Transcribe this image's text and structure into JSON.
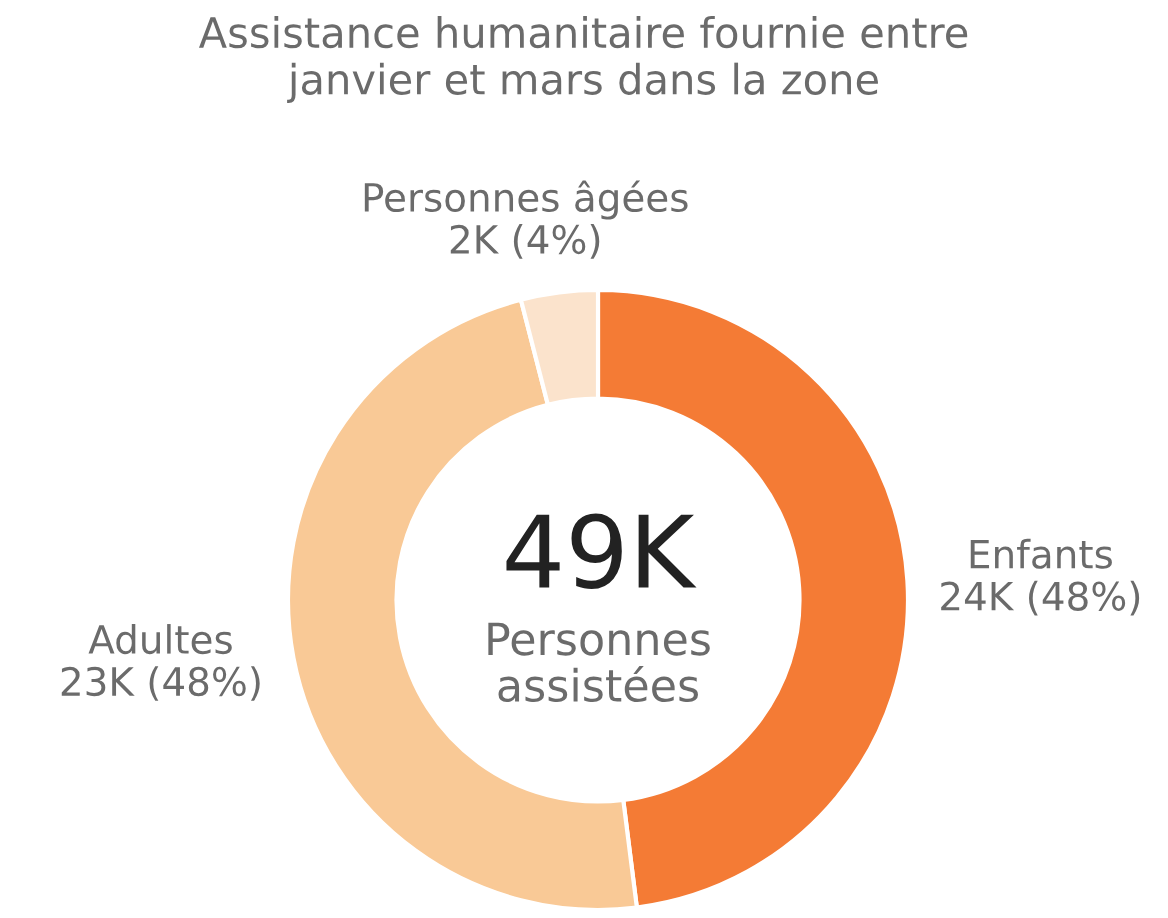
{
  "chart_data": {
    "type": "donut",
    "title": "Assistance humanitaire fournie entre\njanvier et mars dans la zone",
    "categories": [
      "Enfants",
      "Adultes",
      "Personnes âgées"
    ],
    "values": [
      48,
      48,
      4
    ],
    "value_labels": [
      "24K (48%)",
      "23K (48%)",
      "2K (4%)"
    ],
    "colors": [
      "#f47b35",
      "#f9c996",
      "#fbe3cc"
    ],
    "annotations": [
      "49K",
      "Personnes\nassistées"
    ]
  }
}
